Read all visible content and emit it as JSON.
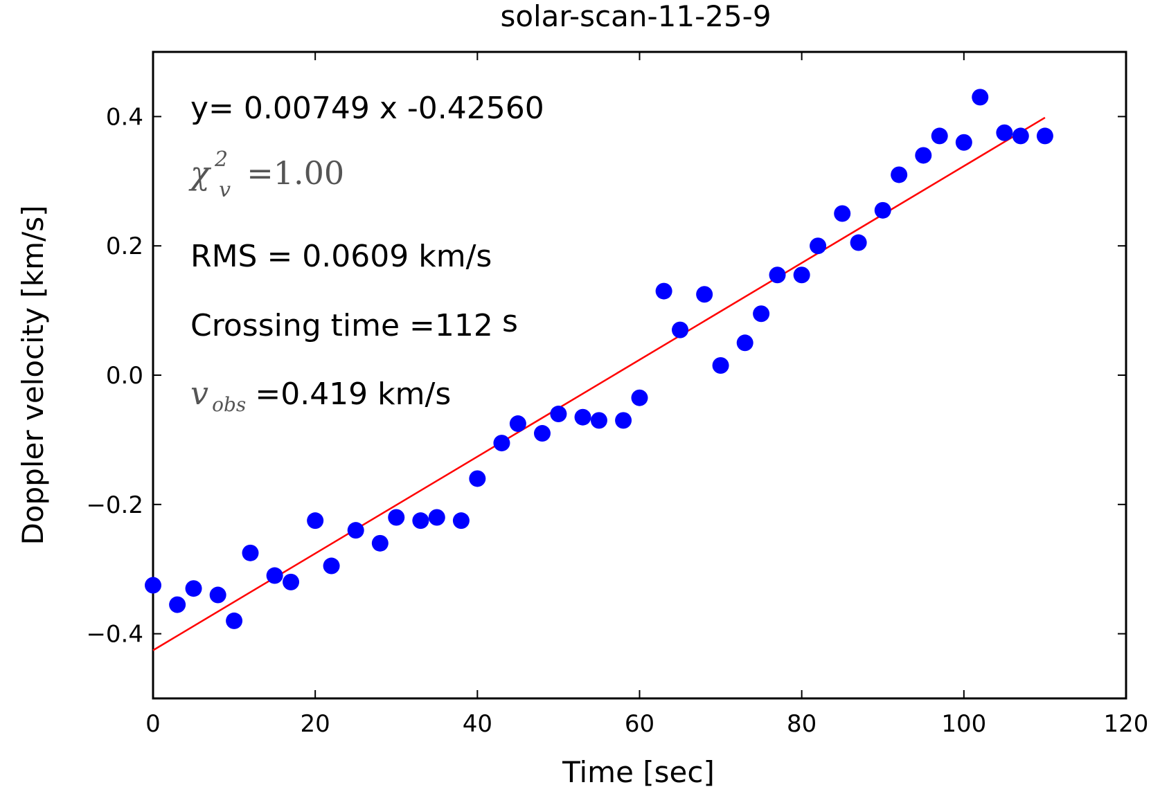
{
  "chart_data": {
    "type": "scatter",
    "title": "solar-scan-11-25-9",
    "xlabel": "Time [sec]",
    "ylabel": "Doppler velocity [km/s]",
    "xlim": [
      0,
      120
    ],
    "ylim": [
      -0.5,
      0.5
    ],
    "xticks": [
      0,
      20,
      40,
      60,
      80,
      100,
      120
    ],
    "xtick_labels": [
      "0",
      "20",
      "40",
      "60",
      "80",
      "100",
      "120"
    ],
    "yticks": [
      -0.4,
      -0.2,
      0.0,
      0.2,
      0.4
    ],
    "ytick_labels": [
      "−0.4",
      "−0.2",
      "0.0",
      "0.2",
      "0.4"
    ],
    "grid": false,
    "point_color": "#0000ff",
    "line_color": "#ff0000",
    "series": [
      {
        "values": [
          [
            0,
            -0.325
          ],
          [
            3,
            -0.355
          ],
          [
            5,
            -0.33
          ],
          [
            8,
            -0.34
          ],
          [
            10,
            -0.38
          ],
          [
            12,
            -0.275
          ],
          [
            15,
            -0.31
          ],
          [
            17,
            -0.32
          ],
          [
            20,
            -0.225
          ],
          [
            22,
            -0.295
          ],
          [
            25,
            -0.24
          ],
          [
            28,
            -0.26
          ],
          [
            30,
            -0.22
          ],
          [
            33,
            -0.225
          ],
          [
            35,
            -0.22
          ],
          [
            38,
            -0.225
          ],
          [
            40,
            -0.16
          ],
          [
            43,
            -0.105
          ],
          [
            45,
            -0.075
          ],
          [
            48,
            -0.09
          ],
          [
            50,
            -0.06
          ],
          [
            53,
            -0.065
          ],
          [
            55,
            -0.07
          ],
          [
            58,
            -0.07
          ],
          [
            60,
            -0.035
          ],
          [
            63,
            0.13
          ],
          [
            65,
            0.07
          ],
          [
            68,
            0.125
          ],
          [
            70,
            0.015
          ],
          [
            73,
            0.05
          ],
          [
            75,
            0.095
          ],
          [
            77,
            0.155
          ],
          [
            80,
            0.155
          ],
          [
            82,
            0.2
          ],
          [
            85,
            0.25
          ],
          [
            87,
            0.205
          ],
          [
            90,
            0.255
          ],
          [
            92,
            0.31
          ],
          [
            95,
            0.34
          ],
          [
            97,
            0.37
          ],
          [
            100,
            0.36
          ],
          [
            102,
            0.43
          ],
          [
            105,
            0.375
          ],
          [
            107,
            0.37
          ],
          [
            110,
            0.37
          ]
        ]
      }
    ],
    "fit_line": {
      "slope": 0.00749,
      "intercept": -0.4256,
      "x_range": [
        0,
        110
      ]
    },
    "annotations": {
      "equation": "y= 0.00749 x -0.42560",
      "chi_symbol": "χ",
      "chi_sup": "2",
      "chi_sub": "v",
      "chi_value": "=1.00",
      "rms": "RMS = 0.0609 km/s",
      "crossing_main": "Crossing time =112",
      "crossing_unit": "s",
      "vobs_symbol": "v",
      "vobs_sub": "obs",
      "vobs_value": "=0.419 km/s"
    }
  }
}
